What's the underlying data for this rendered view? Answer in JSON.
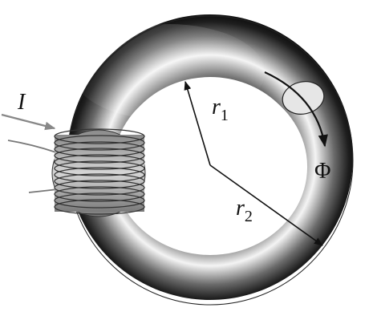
{
  "labels": {
    "current": "I",
    "inner_radius": "r",
    "inner_radius_sub": "1",
    "outer_radius": "r",
    "outer_radius_sub": "2",
    "flux": "Φ"
  },
  "colors": {
    "toroid_dark": "#1a1a1a",
    "toroid_light": "#f2f2f2",
    "coil_wire": "#444444",
    "ink": "#111111"
  }
}
